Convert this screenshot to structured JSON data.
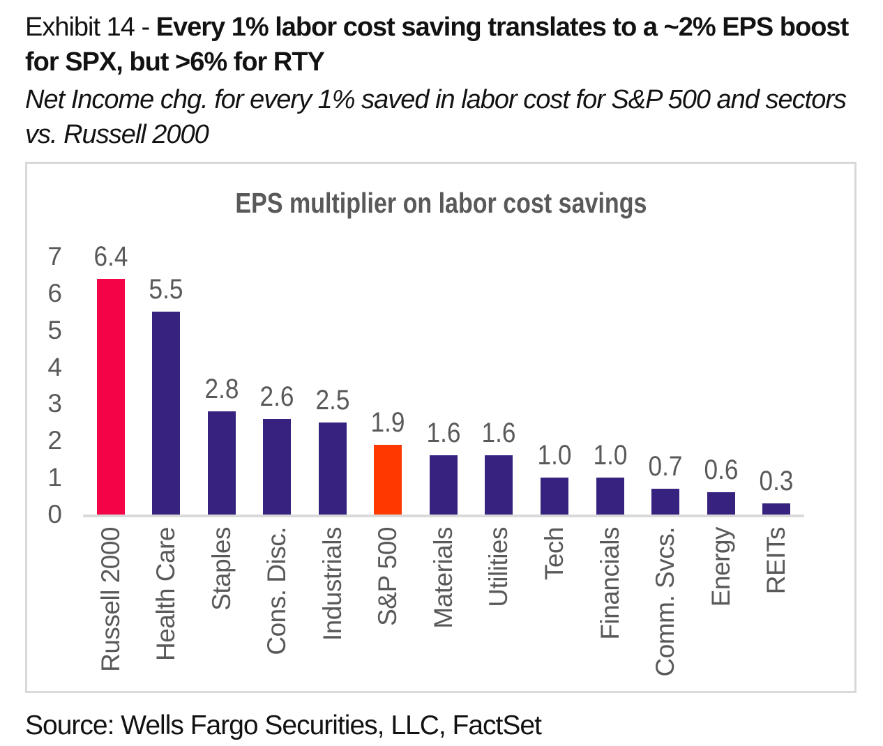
{
  "exhibit": {
    "label": "Exhibit 14 - ",
    "title_bold": "Every 1% labor cost saving translates to a ~2% EPS boost for SPX, but >6% for RTY",
    "subtitle": "Net Income chg. for every 1% saved in labor cost for S&P 500 and sectors vs. Russell 2000",
    "source": "Source: Wells Fargo Securities, LLC, FactSet"
  },
  "chart_data": {
    "type": "bar",
    "title": "EPS multiplier on labor cost savings",
    "categories": [
      "Russell 2000",
      "Health Care",
      "Staples",
      "Cons. Disc.",
      "Industrials",
      "S&P 500",
      "Materials",
      "Utilities",
      "Tech",
      "Financials",
      "Comm. Svcs.",
      "Energy",
      "REITs"
    ],
    "values": [
      6.4,
      5.5,
      2.8,
      2.6,
      2.5,
      1.9,
      1.6,
      1.6,
      1.0,
      1.0,
      0.7,
      0.6,
      0.3
    ],
    "data_labels": [
      "6.4",
      "5.5",
      "2.8",
      "2.6",
      "2.5",
      "1.9",
      "1.6",
      "1.6",
      "1.0",
      "1.0",
      "0.7",
      "0.6",
      "0.3"
    ],
    "y_ticks": [
      7,
      6,
      5,
      4,
      3,
      2,
      1,
      0
    ],
    "ylim": [
      0,
      7
    ],
    "xlabel": "",
    "ylabel": "",
    "grid": false,
    "legend": false,
    "bar_colors": {
      "default": "#38227F",
      "Russell 2000": "#F40347",
      "S&P 500": "#FE3900"
    },
    "colors": {
      "axis_line": "#D9D9D9",
      "chart_border": "#D9D9D9",
      "label_gray": "#595959"
    }
  }
}
